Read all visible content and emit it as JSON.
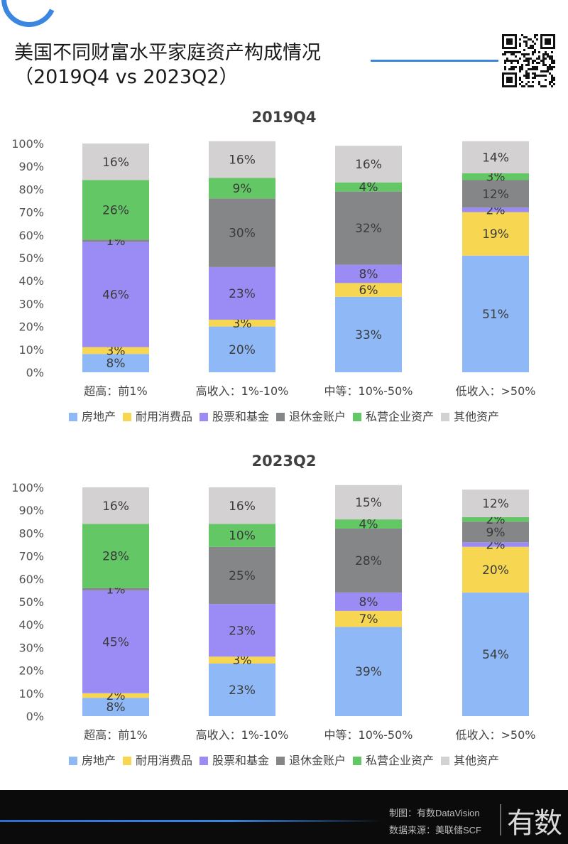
{
  "title_line1": "美国不同财富水平家庭资产构成情况",
  "title_line2": "（2019Q4 vs 2023Q2）",
  "colors": {
    "房地产": "#8fb8f6",
    "耐用消费品": "#f7d652",
    "股票和基金": "#9b8cf5",
    "退休金账户": "#858687",
    "私营企业资产": "#63c765",
    "其他资产": "#d3d1d1"
  },
  "chart_data": [
    {
      "type": "bar",
      "stacked": true,
      "title": "2019Q4",
      "categories": [
        "超高：前1%",
        "高收入：1%-10%",
        "中等：10%-50%",
        "低收入：>50%"
      ],
      "ylim": [
        0,
        100
      ],
      "yticks": [
        "0%",
        "10%",
        "20%",
        "30%",
        "40%",
        "50%",
        "60%",
        "70%",
        "80%",
        "90%",
        "100%"
      ],
      "legend_position": "bottom",
      "series": [
        {
          "name": "房地产",
          "values": [
            8,
            20,
            33,
            51
          ],
          "labels": [
            "8%",
            "20%",
            "33%",
            "51%"
          ]
        },
        {
          "name": "耐用消费品",
          "values": [
            3,
            3,
            6,
            19
          ],
          "labels": [
            "3%",
            "3%",
            "6%",
            "19%"
          ]
        },
        {
          "name": "股票和基金",
          "values": [
            46,
            23,
            8,
            2
          ],
          "labels": [
            "46%",
            "23%",
            "8%",
            "2%"
          ]
        },
        {
          "name": "退休金账户",
          "values": [
            1,
            30,
            32,
            12
          ],
          "labels": [
            "1%",
            "30%",
            "32%",
            "12%"
          ]
        },
        {
          "name": "私营企业资产",
          "values": [
            26,
            9,
            4,
            3
          ],
          "labels": [
            "26%",
            "9%",
            "4%",
            "3%"
          ]
        },
        {
          "name": "其他资产",
          "values": [
            16,
            16,
            16,
            14
          ],
          "labels": [
            "16%",
            "16%",
            "16%",
            "14%"
          ]
        }
      ]
    },
    {
      "type": "bar",
      "stacked": true,
      "title": "2023Q2",
      "categories": [
        "超高：前1%",
        "高收入：1%-10%",
        "中等：10%-50%",
        "低收入：>50%"
      ],
      "ylim": [
        0,
        100
      ],
      "yticks": [
        "0%",
        "10%",
        "20%",
        "30%",
        "40%",
        "50%",
        "60%",
        "70%",
        "80%",
        "90%",
        "100%"
      ],
      "legend_position": "bottom",
      "series": [
        {
          "name": "房地产",
          "values": [
            8,
            23,
            39,
            54
          ],
          "labels": [
            "8%",
            "23%",
            "39%",
            "54%"
          ]
        },
        {
          "name": "耐用消费品",
          "values": [
            2,
            3,
            7,
            20
          ],
          "labels": [
            "2%",
            "3%",
            "7%",
            "20%"
          ]
        },
        {
          "name": "股票和基金",
          "values": [
            45,
            23,
            8,
            2
          ],
          "labels": [
            "45%",
            "23%",
            "8%",
            "2%"
          ]
        },
        {
          "name": "退休金账户",
          "values": [
            1,
            25,
            28,
            9
          ],
          "labels": [
            "1%",
            "25%",
            "28%",
            "9%"
          ]
        },
        {
          "name": "私营企业资产",
          "values": [
            28,
            10,
            4,
            2
          ],
          "labels": [
            "28%",
            "10%",
            "4%",
            "2%"
          ]
        },
        {
          "name": "其他资产",
          "values": [
            16,
            16,
            15,
            12
          ],
          "labels": [
            "16%",
            "16%",
            "15%",
            "12%"
          ]
        }
      ]
    }
  ],
  "footer": {
    "line1": "制图：有数DataVision",
    "line2": "数据来源：美联储SCF",
    "logo": "有数"
  }
}
